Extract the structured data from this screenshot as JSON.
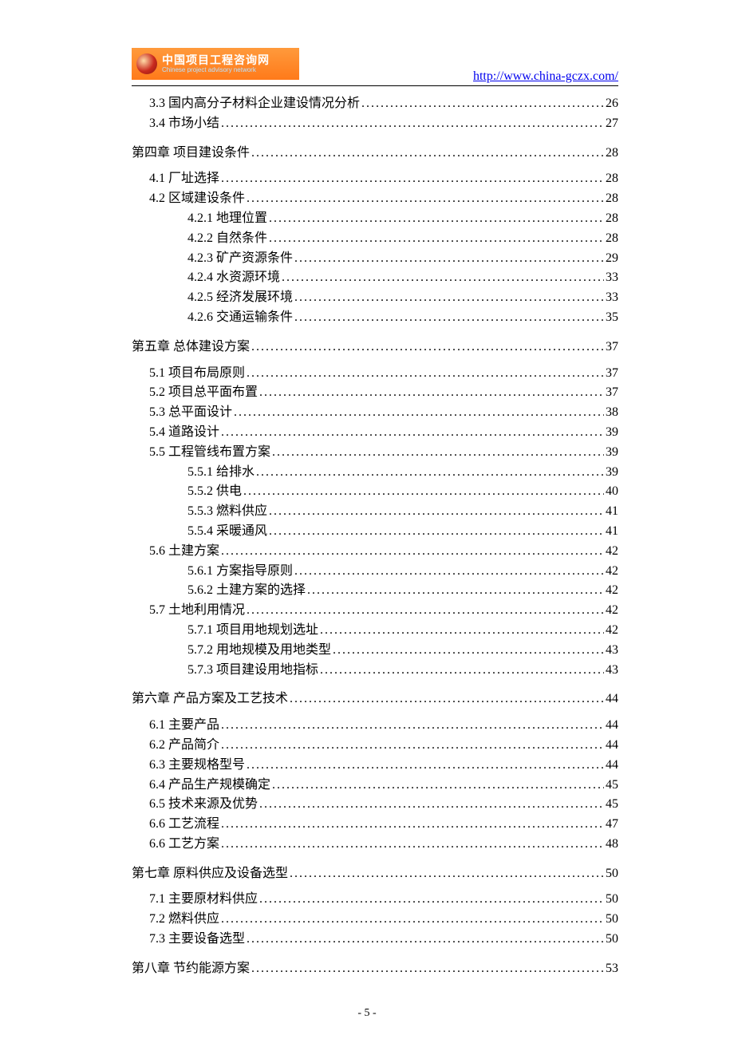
{
  "header": {
    "logo_cn": "中国项目工程咨询网",
    "logo_en": "Chinese project advisory network",
    "url": "http://www.china-gczx.com/"
  },
  "page_number": "- 5 -",
  "toc": [
    {
      "level": 2,
      "label": "3.3 国内高分子材料企业建设情况分析",
      "page": "26"
    },
    {
      "level": 2,
      "label": "3.4 市场小结",
      "page": "27",
      "spacer_after": true
    },
    {
      "level": 1,
      "label": "第四章  项目建设条件",
      "page": "28"
    },
    {
      "level": 2,
      "label": "4.1 厂址选择",
      "page": "28"
    },
    {
      "level": 2,
      "label": "4.2 区域建设条件",
      "page": "28"
    },
    {
      "level": 3,
      "label": "4.2.1 地理位置",
      "page": "28"
    },
    {
      "level": 3,
      "label": "4.2.2 自然条件",
      "page": "28"
    },
    {
      "level": 3,
      "label": "4.2.3 矿产资源条件",
      "page": "29"
    },
    {
      "level": 3,
      "label": "4.2.4 水资源环境",
      "page": "33"
    },
    {
      "level": 3,
      "label": "4.2.5 经济发展环境",
      "page": "33"
    },
    {
      "level": 3,
      "label": "4.2.6 交通运输条件",
      "page": "35",
      "spacer_after": true
    },
    {
      "level": 1,
      "label": "第五章  总体建设方案",
      "page": "37"
    },
    {
      "level": 2,
      "label": "5.1 项目布局原则",
      "page": "37"
    },
    {
      "level": 2,
      "label": "5.2 项目总平面布置",
      "page": "37"
    },
    {
      "level": 2,
      "label": "5.3 总平面设计",
      "page": "38"
    },
    {
      "level": 2,
      "label": "5.4 道路设计",
      "page": "39"
    },
    {
      "level": 2,
      "label": "5.5 工程管线布置方案",
      "page": "39"
    },
    {
      "level": 3,
      "label": "5.5.1 给排水",
      "page": "39"
    },
    {
      "level": 3,
      "label": "5.5.2 供电",
      "page": "40"
    },
    {
      "level": 3,
      "label": "5.5.3 燃料供应",
      "page": "41"
    },
    {
      "level": 3,
      "label": "5.5.4 采暖通风",
      "page": "41"
    },
    {
      "level": 2,
      "label": "5.6 土建方案",
      "page": "42"
    },
    {
      "level": 3,
      "label": "5.6.1 方案指导原则",
      "page": "42"
    },
    {
      "level": 3,
      "label": "5.6.2 土建方案的选择",
      "page": "42"
    },
    {
      "level": 2,
      "label": "5.7 土地利用情况",
      "page": "42"
    },
    {
      "level": 3,
      "label": "5.7.1 项目用地规划选址",
      "page": "42"
    },
    {
      "level": 3,
      "label": "5.7.2 用地规模及用地类型",
      "page": "43"
    },
    {
      "level": 3,
      "label": "5.7.3 项目建设用地指标",
      "page": "43",
      "spacer_after": true
    },
    {
      "level": 1,
      "label": "第六章   产品方案及工艺技术",
      "page": "44"
    },
    {
      "level": 2,
      "label": "6.1 主要产品",
      "page": "44"
    },
    {
      "level": 2,
      "label": "6.2 产品简介",
      "page": "44"
    },
    {
      "level": 2,
      "label": "6.3 主要规格型号",
      "page": "44"
    },
    {
      "level": 2,
      "label": "6.4 产品生产规模确定",
      "page": "45"
    },
    {
      "level": 2,
      "label": "6.5 技术来源及优势",
      "page": "45"
    },
    {
      "level": 2,
      "label": "6.6 工艺流程",
      "page": "47"
    },
    {
      "level": 2,
      "label": "6.6 工艺方案",
      "page": "48",
      "spacer_after": true
    },
    {
      "level": 1,
      "label": "第七章  原料供应及设备选型",
      "page": "50"
    },
    {
      "level": 2,
      "label": "7.1 主要原材料供应",
      "page": "50"
    },
    {
      "level": 2,
      "label": "7.2 燃料供应",
      "page": "50"
    },
    {
      "level": 2,
      "label": "7.3 主要设备选型",
      "page": "50",
      "spacer_after": true
    },
    {
      "level": 1,
      "label": "第八章  节约能源方案",
      "page": "53"
    }
  ]
}
